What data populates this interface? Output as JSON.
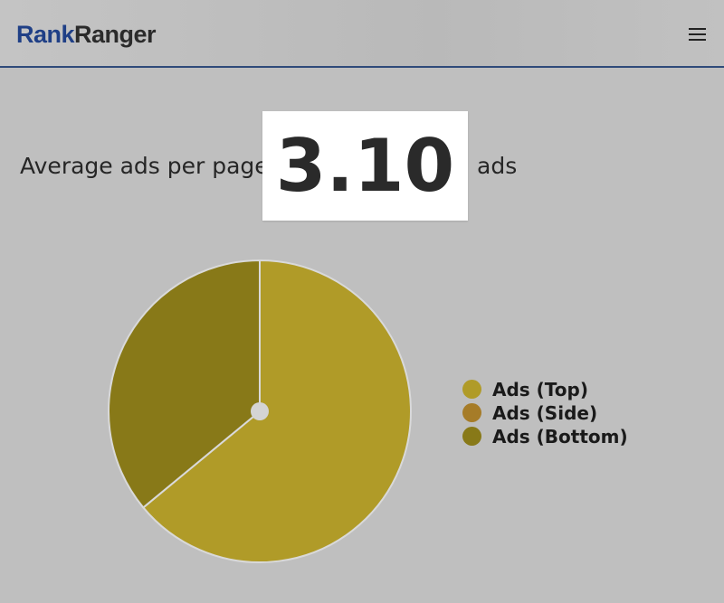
{
  "header": {
    "logo_part1": "Rank",
    "logo_part2": "Ranger",
    "menu_icon": "hamburger-menu-icon"
  },
  "summary": {
    "label": "Average ads per page:",
    "value": "3.10",
    "unit": "ads"
  },
  "colors": {
    "background": "#bfbfbf",
    "logo_blue": "#1f3f86",
    "header_border": "#2f4a7a"
  },
  "chart_data": {
    "type": "pie",
    "title": "",
    "legend_placement": "right",
    "categories": [
      "Ads (Top)",
      "Ads (Side)",
      "Ads (Bottom)"
    ],
    "values": [
      64,
      0,
      36
    ],
    "colors": [
      "#b09b28",
      "#a67c28",
      "#887918"
    ],
    "donut_hole": true
  }
}
